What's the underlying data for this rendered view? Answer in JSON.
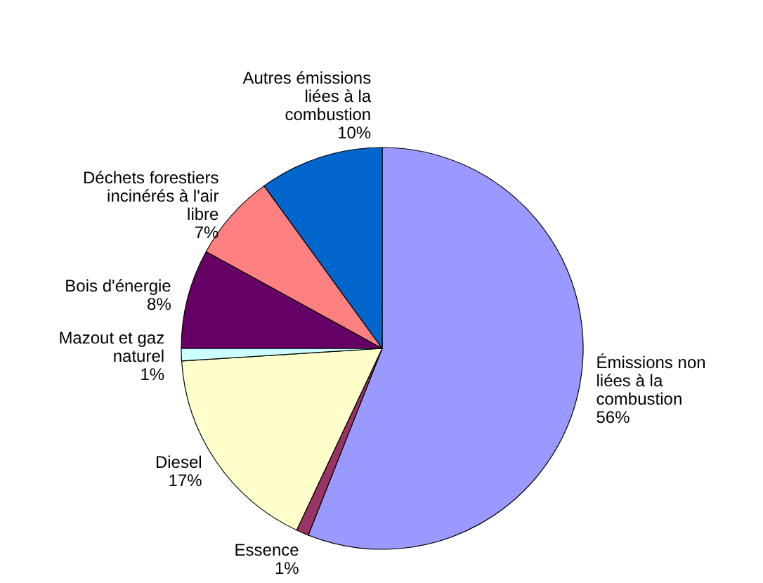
{
  "chart_data": {
    "type": "pie",
    "categories": [
      "Émissions non liées à la combustion",
      "Essence",
      "Diesel",
      "Mazout et gaz naturel",
      "Bois d'énergie",
      "Déchets forestiers incinérés à l'air libre",
      "Autres émissions liées à la combustion"
    ],
    "values": [
      56,
      1,
      17,
      1,
      8,
      7,
      10
    ],
    "value_labels": [
      "56%",
      "1%",
      "17%",
      "1%",
      "8%",
      "7%",
      "10%"
    ],
    "colors": [
      "#9999ff",
      "#993366",
      "#ffffcc",
      "#ccffff",
      "#660066",
      "#ff8080",
      "#0066cc"
    ]
  }
}
